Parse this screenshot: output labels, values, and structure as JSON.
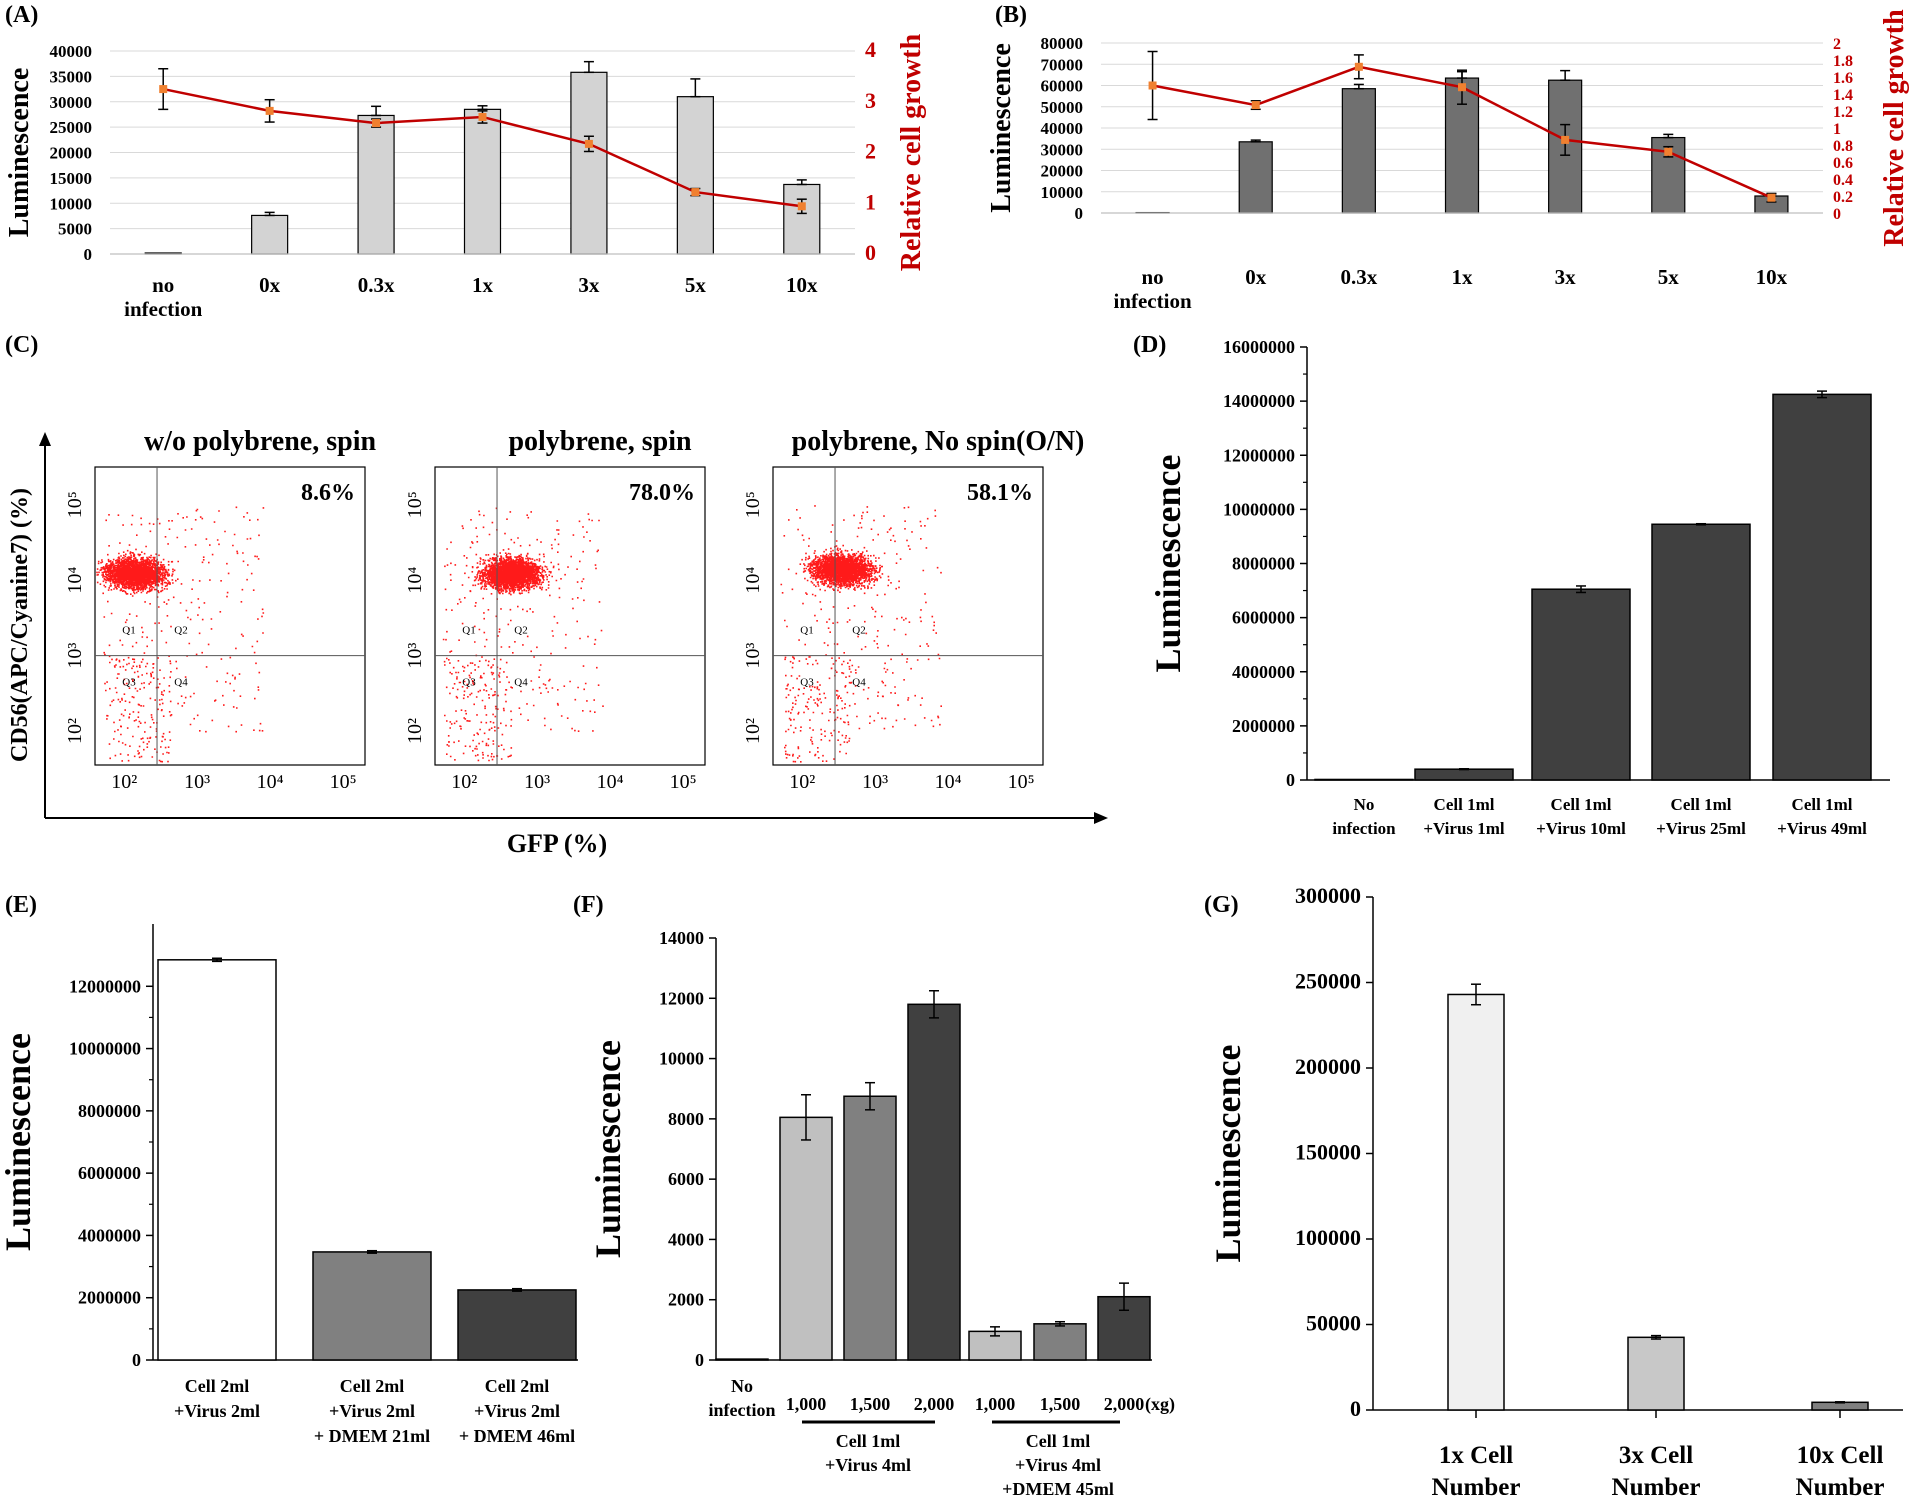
{
  "figure": {
    "panel_A": {
      "label": "(A)",
      "chart_data": {
        "type": "bar",
        "categories": [
          "no\ninfection",
          "0x",
          "0.3x",
          "1x",
          "3x",
          "5x",
          "10x"
        ],
        "series": [
          {
            "name": "Luminescence",
            "axis": "left",
            "values": [
              200,
              7600,
              27300,
              28500,
              35800,
              31000,
              13700
            ],
            "errors": [
              0,
              600,
              1800,
              700,
              2100,
              3500,
              900
            ]
          },
          {
            "name": "Relative cell growth",
            "type": "line",
            "axis": "right",
            "values": [
              3.25,
              2.82,
              2.58,
              2.7,
              2.17,
              1.22,
              0.94
            ],
            "errors": [
              0.4,
              0.22,
              0.08,
              0.12,
              0.15,
              0.07,
              0.14
            ]
          }
        ],
        "ylabel": "Luminescence",
        "ylabel_right": "Relative cell growth",
        "ylim": [
          0,
          40000
        ],
        "yticks": [
          0,
          5000,
          10000,
          15000,
          20000,
          25000,
          30000,
          35000,
          40000
        ],
        "ylim_right": [
          0,
          4
        ],
        "yticks_right": [
          0,
          1,
          2,
          3,
          4
        ],
        "bar_color": "#d3d3d3",
        "line_color": "#c00000",
        "marker_color": "#f08030"
      }
    },
    "panel_B": {
      "label": "(B)",
      "chart_data": {
        "type": "bar",
        "categories": [
          "no\ninfection",
          "0x",
          "0.3x",
          "1x",
          "3x",
          "5x",
          "10x"
        ],
        "series": [
          {
            "name": "Luminescence",
            "axis": "left",
            "values": [
              200,
              33500,
              58500,
              63500,
              62500,
              35500,
              8000
            ],
            "errors": [
              0,
              800,
              2000,
              3000,
              4500,
              1500,
              1000
            ]
          },
          {
            "name": "Relative cell growth",
            "type": "line",
            "axis": "right",
            "values": [
              1.5,
              1.27,
              1.72,
              1.48,
              0.86,
              0.72,
              0.18
            ],
            "errors": [
              0.4,
              0.05,
              0.14,
              0.2,
              0.18,
              0.06,
              0.05
            ]
          }
        ],
        "ylabel": "Luminescence",
        "ylabel_right": "Relative cell growth",
        "ylim": [
          0,
          80000
        ],
        "yticks": [
          0,
          10000,
          20000,
          30000,
          40000,
          50000,
          60000,
          70000,
          80000
        ],
        "ylim_right": [
          0,
          2
        ],
        "yticks_right": [
          "0",
          "0.2",
          "0.4",
          "0.6",
          "0.8",
          "1",
          "1.2",
          "1.4",
          "1.6",
          "1.8",
          "2"
        ],
        "bar_color": "#707070",
        "line_color": "#c00000",
        "marker_color": "#f08030"
      }
    },
    "panel_C": {
      "label": "(C)",
      "chart_data": {
        "type": "scatter",
        "xlabel": "GFP (%)",
        "ylabel": "CD56(APC/Cyanine7) (%)",
        "axis_scale": "log",
        "x_ticks": [
          "10²",
          "10³",
          "10⁴",
          "10⁵"
        ],
        "y_ticks": [
          "10²",
          "10³",
          "10⁴",
          "10⁵"
        ],
        "quadrant_labels": [
          "Q1",
          "Q2",
          "Q3",
          "Q4"
        ],
        "dot_color": "#ff1a1a",
        "plots": [
          {
            "title": "w/o polybrene, spin",
            "percent": "8.6%",
            "center_x_log": 2.15,
            "center_y_log": 4.1,
            "gate_x_log": 2.45
          },
          {
            "title": "polybrene, spin",
            "percent": "78.0%",
            "center_x_log": 2.65,
            "center_y_log": 4.1,
            "gate_x_log": 2.45
          },
          {
            "title": "polybrene, No spin(O/N)",
            "percent": "58.1%",
            "center_x_log": 2.55,
            "center_y_log": 4.15,
            "gate_x_log": 2.45
          }
        ]
      }
    },
    "panel_D": {
      "label": "(D)",
      "chart_data": {
        "type": "bar",
        "categories": [
          "No\ninfection",
          "Cell 1ml\n+Virus 1ml",
          "Cell 1ml\n+Virus 10ml",
          "Cell 1ml\n+Virus 25ml",
          "Cell 1ml\n+Virus 49ml"
        ],
        "values": [
          20000,
          400000,
          7050000,
          9450000,
          14250000
        ],
        "errors": [
          0,
          15000,
          120000,
          20000,
          120000
        ],
        "ylabel": "Luminescence",
        "ylim": [
          0,
          16000000
        ],
        "yticks": [
          0,
          2000000,
          4000000,
          6000000,
          8000000,
          10000000,
          12000000,
          14000000,
          16000000
        ],
        "bar_color": "#404040"
      }
    },
    "panel_E": {
      "label": "(E)",
      "chart_data": {
        "type": "bar",
        "categories": [
          "Cell 2ml\n+Virus 2ml",
          "Cell 2ml\n+Virus 2ml\n+ DMEM 21ml",
          "Cell 2ml\n+Virus 2ml\n+ DMEM 46ml"
        ],
        "values": [
          12850000,
          3470000,
          2250000
        ],
        "errors": [
          50000,
          40000,
          40000
        ],
        "colors": [
          "#ffffff",
          "#808080",
          "#404040"
        ],
        "ylabel": "Luminescence",
        "ylim": [
          0,
          14000000
        ],
        "yticks": [
          0,
          2000000,
          4000000,
          6000000,
          8000000,
          10000000,
          12000000
        ]
      }
    },
    "panel_F": {
      "label": "(F)",
      "chart_data": {
        "type": "bar",
        "categories": [
          "No\ninfection",
          "1,000",
          "1,500",
          "2,000",
          "1,000",
          "1,500",
          "2,000"
        ],
        "values": [
          30,
          8050,
          8750,
          11800,
          950,
          1200,
          2100
        ],
        "errors": [
          0,
          750,
          450,
          450,
          150,
          70,
          450
        ],
        "colors": [
          "#c0c0c0",
          "#c0c0c0",
          "#808080",
          "#404040",
          "#c0c0c0",
          "#808080",
          "#404040"
        ],
        "unit_label": "(xg)",
        "groups": [
          "Cell 1ml\n+Virus 4ml",
          "Cell 1ml\n+Virus 4ml\n+DMEM 45ml"
        ],
        "ylabel": "Luminescence",
        "ylim": [
          0,
          14000
        ],
        "yticks": [
          0,
          2000,
          4000,
          6000,
          8000,
          10000,
          12000,
          14000
        ]
      }
    },
    "panel_G": {
      "label": "(G)",
      "chart_data": {
        "type": "bar",
        "categories": [
          "1x Cell\nNumber",
          "3x Cell\nNumber",
          "10x Cell\nNumber"
        ],
        "values": [
          243000,
          42500,
          4500
        ],
        "errors": [
          6000,
          1000,
          300
        ],
        "colors": [
          "#f0f0f0",
          "#c8c8c8",
          "#808080"
        ],
        "ylabel": "Luminescence",
        "ylim": [
          0,
          300000
        ],
        "yticks": [
          0,
          50000,
          100000,
          150000,
          200000,
          250000,
          300000
        ]
      }
    }
  }
}
